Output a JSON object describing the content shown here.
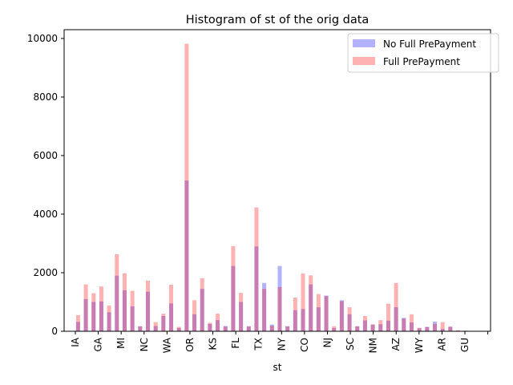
{
  "chart_data": {
    "type": "bar",
    "title": "Histogram of st of the orig data",
    "xlabel": "st",
    "ylabel": "",
    "ylim": [
      0,
      10300
    ],
    "yticks": [
      0,
      2000,
      4000,
      6000,
      8000,
      10000
    ],
    "xtick_labels": [
      "IA",
      "GA",
      "MI",
      "NC",
      "WA",
      "OR",
      "KS",
      "FL",
      "TX",
      "NY",
      "CO",
      "NJ",
      "SC",
      "NM",
      "AZ",
      "WY",
      "AR",
      "GU",
      ""
    ],
    "legend_position": "top-right",
    "series": [
      {
        "name": "No Full PrePayment",
        "color": "#0000ff",
        "alpha": 0.3,
        "values": [
          320,
          1100,
          1000,
          1020,
          650,
          1900,
          1400,
          850,
          170,
          1350,
          180,
          520,
          950,
          110,
          5150,
          580,
          1450,
          250,
          380,
          180,
          2230,
          1000,
          170,
          2900,
          1650,
          230,
          2230,
          170,
          720,
          760,
          1600,
          820,
          1220,
          110,
          1060,
          580,
          170,
          370,
          220,
          240,
          360,
          820,
          460,
          300,
          100,
          150,
          330,
          80,
          150,
          20,
          10
        ]
      },
      {
        "name": "Full PrePayment",
        "color": "#ff0000",
        "alpha": 0.3,
        "values": [
          550,
          1600,
          1300,
          1530,
          880,
          2630,
          1980,
          1380,
          170,
          1730,
          310,
          600,
          1590,
          150,
          9820,
          1060,
          1810,
          290,
          600,
          160,
          2910,
          1310,
          170,
          4230,
          1450,
          190,
          1510,
          170,
          1150,
          1970,
          1910,
          1270,
          1200,
          170,
          1030,
          820,
          170,
          520,
          240,
          380,
          940,
          1650,
          430,
          580,
          120,
          140,
          250,
          310,
          160,
          30,
          20
        ]
      }
    ]
  }
}
